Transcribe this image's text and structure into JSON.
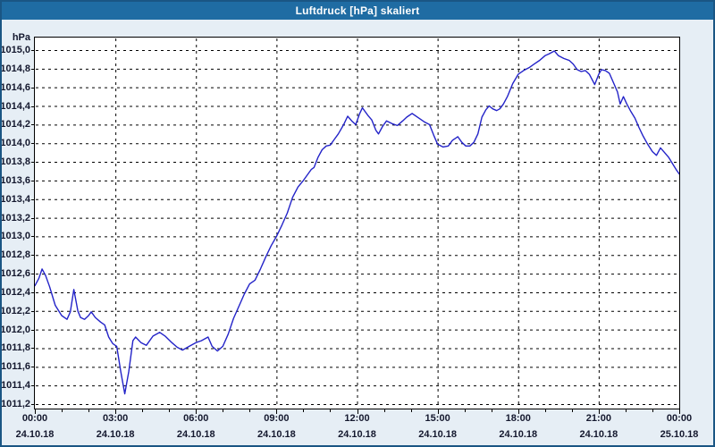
{
  "window": {
    "title": "Luftdruck [hPa] skaliert"
  },
  "colors": {
    "window_border": "#1a5684",
    "titlebar_bg": "#1f6ca3",
    "titlebar_text": "#ffffff",
    "content_bg": "#e6eef5",
    "plot_bg": "#ffffff",
    "plot_border": "#000000",
    "grid": "#000000",
    "tick_text": "#14182e",
    "series_line": "#2323c8"
  },
  "chart_data": {
    "type": "line",
    "title": "Luftdruck [hPa] skaliert",
    "y_unit_label": "hPa",
    "ylim": [
      1011.2,
      1015.0
    ],
    "ytick_step": 0.2,
    "y_tick_labels": [
      "1015,0",
      "1014,8",
      "1014,6",
      "1014,4",
      "1014,2",
      "1014,0",
      "1013,8",
      "1013,6",
      "1013,4",
      "1013,2",
      "1013,0",
      "1012,8",
      "1012,6",
      "1012,4",
      "1012,2",
      "1012,0",
      "1011,8",
      "1011,6",
      "1011,4",
      "1011,2"
    ],
    "x_axis": {
      "hours_total": 24,
      "minor_tick_every_hours": 1,
      "major_tick_every_hours": 3,
      "ticks": [
        {
          "hour": 0,
          "time": "00:00",
          "date": "24.10.18"
        },
        {
          "hour": 3,
          "time": "03:00",
          "date": "24.10.18"
        },
        {
          "hour": 6,
          "time": "06:00",
          "date": "24.10.18"
        },
        {
          "hour": 9,
          "time": "09:00",
          "date": "24.10.18"
        },
        {
          "hour": 12,
          "time": "12:00",
          "date": "24.10.18"
        },
        {
          "hour": 15,
          "time": "15:00",
          "date": "24.10.18"
        },
        {
          "hour": 18,
          "time": "18:00",
          "date": "24.10.18"
        },
        {
          "hour": 21,
          "time": "21:00",
          "date": "24.10.18"
        },
        {
          "hour": 24,
          "time": "00:00",
          "date": "25.10.18"
        }
      ]
    },
    "grid": "dashed",
    "legend": "none",
    "series": [
      {
        "name": "Luftdruck [hPa]",
        "points": [
          [
            0.0,
            1012.47
          ],
          [
            0.15,
            1012.55
          ],
          [
            0.27,
            1012.65
          ],
          [
            0.4,
            1012.58
          ],
          [
            0.55,
            1012.46
          ],
          [
            0.76,
            1012.26
          ],
          [
            1.0,
            1012.15
          ],
          [
            1.2,
            1012.11
          ],
          [
            1.32,
            1012.19
          ],
          [
            1.45,
            1012.43
          ],
          [
            1.6,
            1012.2
          ],
          [
            1.7,
            1012.13
          ],
          [
            1.85,
            1012.11
          ],
          [
            2.0,
            1012.15
          ],
          [
            2.1,
            1012.19
          ],
          [
            2.25,
            1012.13
          ],
          [
            2.45,
            1012.08
          ],
          [
            2.6,
            1012.05
          ],
          [
            2.75,
            1011.92
          ],
          [
            2.9,
            1011.85
          ],
          [
            3.05,
            1011.82
          ],
          [
            3.2,
            1011.55
          ],
          [
            3.35,
            1011.31
          ],
          [
            3.5,
            1011.55
          ],
          [
            3.65,
            1011.88
          ],
          [
            3.75,
            1011.92
          ],
          [
            3.95,
            1011.86
          ],
          [
            4.15,
            1011.83
          ],
          [
            4.4,
            1011.93
          ],
          [
            4.65,
            1011.97
          ],
          [
            4.85,
            1011.93
          ],
          [
            5.1,
            1011.86
          ],
          [
            5.3,
            1011.81
          ],
          [
            5.5,
            1011.78
          ],
          [
            5.75,
            1011.82
          ],
          [
            6.0,
            1011.86
          ],
          [
            6.2,
            1011.88
          ],
          [
            6.45,
            1011.92
          ],
          [
            6.6,
            1011.82
          ],
          [
            6.8,
            1011.77
          ],
          [
            7.0,
            1011.82
          ],
          [
            7.2,
            1011.95
          ],
          [
            7.4,
            1012.12
          ],
          [
            7.6,
            1012.25
          ],
          [
            7.8,
            1012.38
          ],
          [
            8.0,
            1012.49
          ],
          [
            8.2,
            1012.53
          ],
          [
            8.4,
            1012.65
          ],
          [
            8.6,
            1012.78
          ],
          [
            8.8,
            1012.9
          ],
          [
            9.0,
            1013.0
          ],
          [
            9.2,
            1013.12
          ],
          [
            9.4,
            1013.25
          ],
          [
            9.6,
            1013.42
          ],
          [
            9.8,
            1013.53
          ],
          [
            10.0,
            1013.6
          ],
          [
            10.15,
            1013.66
          ],
          [
            10.3,
            1013.72
          ],
          [
            10.4,
            1013.74
          ],
          [
            10.55,
            1013.85
          ],
          [
            10.7,
            1013.93
          ],
          [
            10.85,
            1013.97
          ],
          [
            11.0,
            1013.98
          ],
          [
            11.15,
            1014.04
          ],
          [
            11.3,
            1014.1
          ],
          [
            11.5,
            1014.2
          ],
          [
            11.65,
            1014.29
          ],
          [
            11.8,
            1014.24
          ],
          [
            11.95,
            1014.2
          ],
          [
            12.1,
            1014.32
          ],
          [
            12.2,
            1014.38
          ],
          [
            12.4,
            1014.3
          ],
          [
            12.55,
            1014.25
          ],
          [
            12.7,
            1014.14
          ],
          [
            12.8,
            1014.1
          ],
          [
            12.95,
            1014.18
          ],
          [
            13.1,
            1014.24
          ],
          [
            13.3,
            1014.21
          ],
          [
            13.5,
            1014.19
          ],
          [
            13.7,
            1014.24
          ],
          [
            13.85,
            1014.28
          ],
          [
            14.05,
            1014.32
          ],
          [
            14.3,
            1014.27
          ],
          [
            14.5,
            1014.23
          ],
          [
            14.7,
            1014.2
          ],
          [
            14.85,
            1014.09
          ],
          [
            15.0,
            1013.99
          ],
          [
            15.2,
            1013.96
          ],
          [
            15.4,
            1013.97
          ],
          [
            15.55,
            1014.03
          ],
          [
            15.75,
            1014.07
          ],
          [
            15.9,
            1014.01
          ],
          [
            16.05,
            1013.97
          ],
          [
            16.2,
            1013.97
          ],
          [
            16.35,
            1014.01
          ],
          [
            16.5,
            1014.1
          ],
          [
            16.65,
            1014.28
          ],
          [
            16.8,
            1014.36
          ],
          [
            16.92,
            1014.4
          ],
          [
            17.05,
            1014.37
          ],
          [
            17.2,
            1014.35
          ],
          [
            17.32,
            1014.37
          ],
          [
            17.45,
            1014.42
          ],
          [
            17.6,
            1014.5
          ],
          [
            17.8,
            1014.64
          ],
          [
            18.0,
            1014.74
          ],
          [
            18.2,
            1014.78
          ],
          [
            18.4,
            1014.81
          ],
          [
            18.6,
            1014.85
          ],
          [
            18.8,
            1014.89
          ],
          [
            19.0,
            1014.94
          ],
          [
            19.15,
            1014.96
          ],
          [
            19.35,
            1014.99
          ],
          [
            19.5,
            1014.94
          ],
          [
            19.7,
            1014.91
          ],
          [
            19.9,
            1014.89
          ],
          [
            20.05,
            1014.85
          ],
          [
            20.2,
            1014.79
          ],
          [
            20.35,
            1014.77
          ],
          [
            20.5,
            1014.78
          ],
          [
            20.65,
            1014.74
          ],
          [
            20.85,
            1014.63
          ],
          [
            21.0,
            1014.74
          ],
          [
            21.1,
            1014.79
          ],
          [
            21.25,
            1014.78
          ],
          [
            21.4,
            1014.75
          ],
          [
            21.55,
            1014.65
          ],
          [
            21.7,
            1014.55
          ],
          [
            21.8,
            1014.42
          ],
          [
            21.92,
            1014.5
          ],
          [
            22.05,
            1014.42
          ],
          [
            22.2,
            1014.34
          ],
          [
            22.35,
            1014.27
          ],
          [
            22.5,
            1014.17
          ],
          [
            22.65,
            1014.08
          ],
          [
            22.8,
            1014.0
          ],
          [
            23.0,
            1013.91
          ],
          [
            23.15,
            1013.87
          ],
          [
            23.3,
            1013.95
          ],
          [
            23.45,
            1013.9
          ],
          [
            23.6,
            1013.85
          ],
          [
            23.75,
            1013.78
          ],
          [
            23.9,
            1013.71
          ],
          [
            24.0,
            1013.67
          ]
        ]
      }
    ]
  }
}
